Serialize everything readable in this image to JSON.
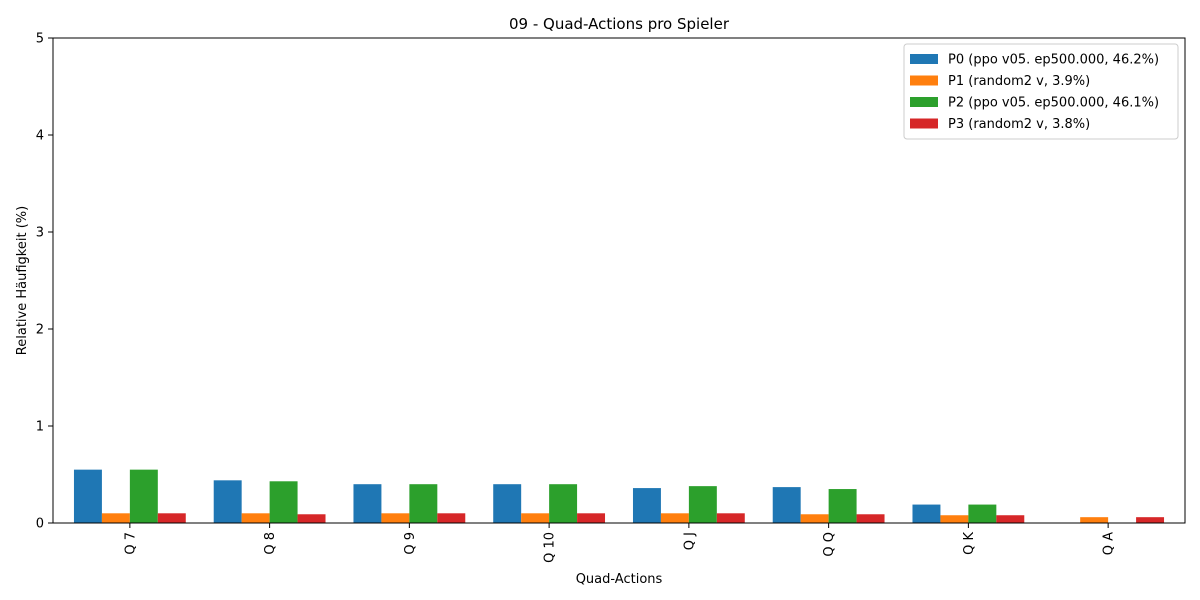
{
  "chart_data": {
    "type": "bar",
    "title": "09 - Quad-Actions pro Spieler",
    "xlabel": "Quad-Actions",
    "ylabel": "Relative Häufigkeit (%)",
    "ylim": [
      0,
      5
    ],
    "yticks": [
      "0",
      "1",
      "2",
      "3",
      "4",
      "5"
    ],
    "grid": false,
    "legend_position": "top-right",
    "categories": [
      "Q 7",
      "Q 8",
      "Q 9",
      "Q 10",
      "Q J",
      "Q Q",
      "Q K",
      "Q A"
    ],
    "series": [
      {
        "name": "P0 (ppo v05. ep500.000, 46.2%)",
        "color": "#1f77b4",
        "values": [
          0.55,
          0.44,
          0.4,
          0.4,
          0.36,
          0.37,
          0.19,
          0.0
        ]
      },
      {
        "name": "P1 (random2 v, 3.9%)",
        "color": "#ff7f0e",
        "values": [
          0.1,
          0.1,
          0.1,
          0.1,
          0.1,
          0.09,
          0.08,
          0.06
        ]
      },
      {
        "name": "P2 (ppo v05. ep500.000, 46.1%)",
        "color": "#2ca02c",
        "values": [
          0.55,
          0.43,
          0.4,
          0.4,
          0.38,
          0.35,
          0.19,
          0.0
        ]
      },
      {
        "name": "P3 (random2 v, 3.8%)",
        "color": "#d62728",
        "values": [
          0.1,
          0.09,
          0.1,
          0.1,
          0.1,
          0.09,
          0.08,
          0.06
        ]
      }
    ]
  }
}
